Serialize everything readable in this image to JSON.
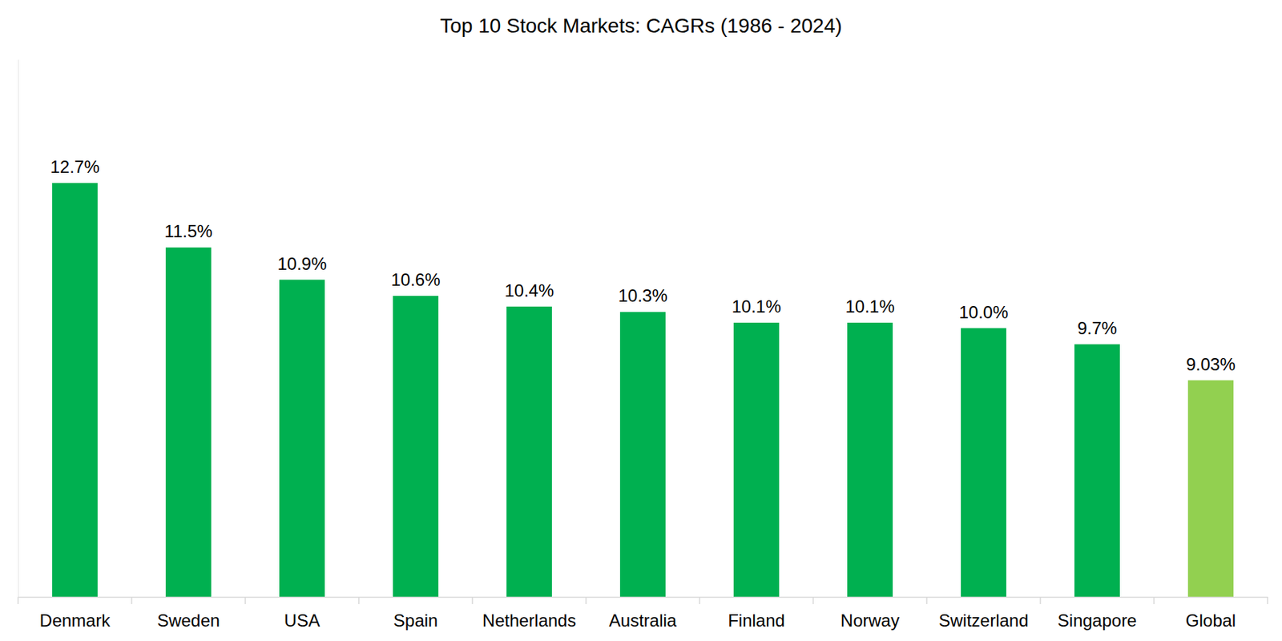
{
  "chart_data": {
    "type": "bar",
    "title": "Top 10 Stock Markets: CAGRs (1986 - 2024)",
    "categories": [
      "Denmark",
      "Sweden",
      "USA",
      "Spain",
      "Netherlands",
      "Australia",
      "Finland",
      "Norway",
      "Switzerland",
      "Singapore",
      "Global"
    ],
    "values": [
      12.7,
      11.5,
      10.9,
      10.6,
      10.4,
      10.3,
      10.1,
      10.1,
      10.0,
      9.7,
      9.03
    ],
    "value_labels": [
      "12.7%",
      "11.5%",
      "10.9%",
      "10.6%",
      "10.4%",
      "10.3%",
      "10.1%",
      "10.1%",
      "10.0%",
      "9.7%",
      "9.03%"
    ],
    "colors": [
      "#00b050",
      "#00b050",
      "#00b050",
      "#00b050",
      "#00b050",
      "#00b050",
      "#00b050",
      "#00b050",
      "#00b050",
      "#00b050",
      "#92d050"
    ],
    "ylim": [
      5,
      15
    ],
    "yticks": [],
    "grid": false,
    "data_labels": true,
    "tick_labels": "x"
  }
}
